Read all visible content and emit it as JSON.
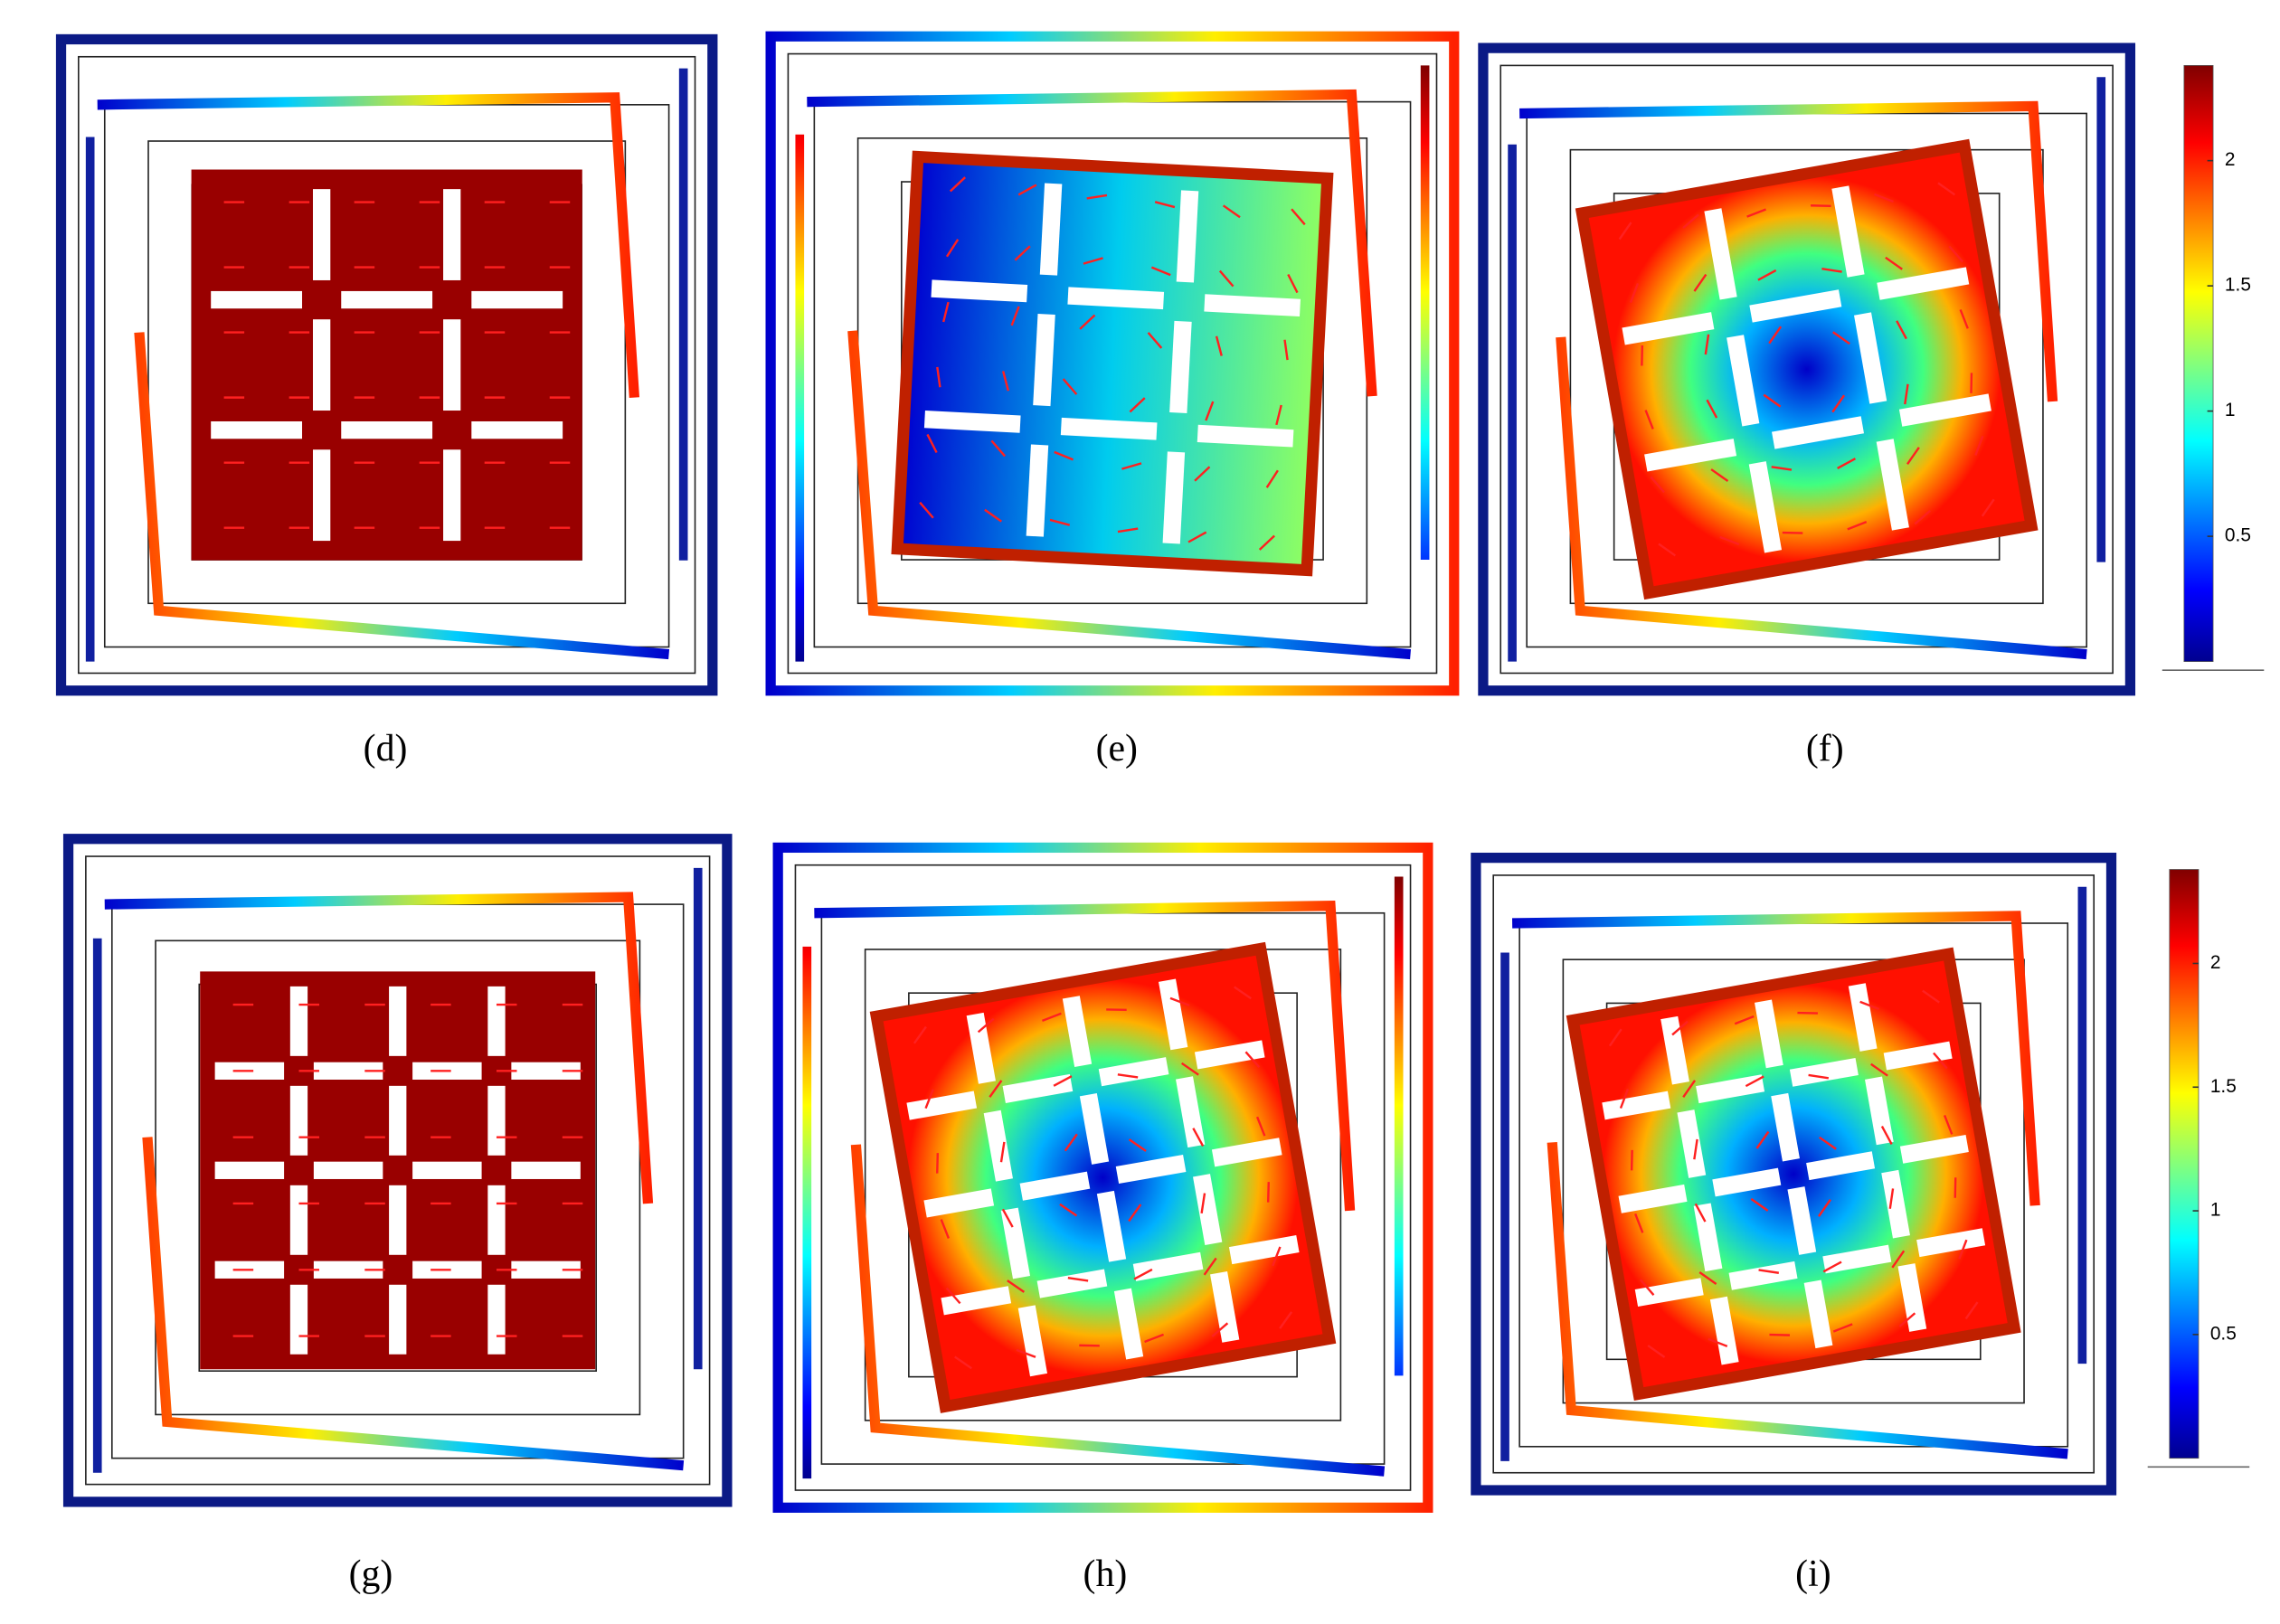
{
  "panels": [
    {
      "label": "(d)"
    },
    {
      "label": "(e)"
    },
    {
      "label": "(f)"
    },
    {
      "label": "(g)"
    },
    {
      "label": "(h)"
    },
    {
      "label": "(i)"
    }
  ],
  "colorbars": [
    {
      "range": [
        0,
        2.38
      ],
      "ticks": [
        0.5,
        1,
        1.5,
        2
      ]
    },
    {
      "range": [
        0,
        2.38
      ],
      "ticks": [
        0.5,
        1,
        1.5,
        2
      ]
    }
  ]
}
